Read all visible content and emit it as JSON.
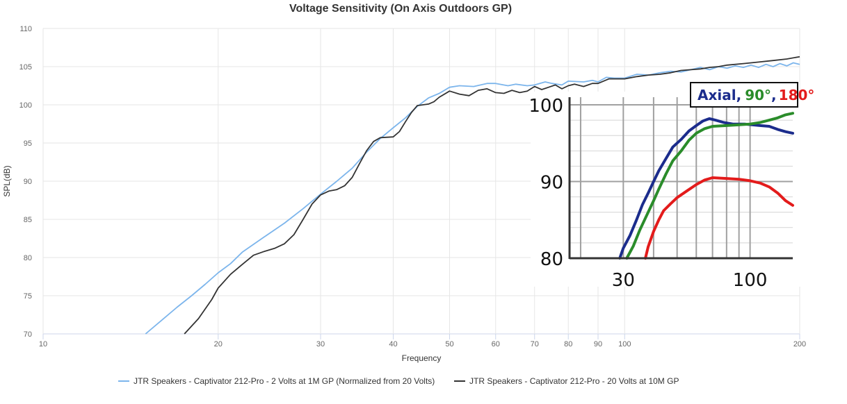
{
  "chart_data": [
    {
      "type": "line",
      "title": "Voltage Sensitivity (On Axis Outdoors GP)",
      "xlabel": "Frequency",
      "ylabel": "SPL(dB)",
      "xscale": "log",
      "xlim": [
        10,
        200
      ],
      "ylim": [
        70,
        110
      ],
      "xticks": [
        10,
        20,
        30,
        40,
        50,
        60,
        70,
        80,
        90,
        100,
        200
      ],
      "yticks": [
        70,
        75,
        80,
        85,
        90,
        95,
        100,
        105,
        110
      ],
      "grid": true,
      "legend_position": "bottom",
      "series": [
        {
          "name": "JTR Speakers - Captivator 212-Pro - 2 Volts at 1M GP (Normalized from 20 Volts)",
          "color": "#7cb5ec",
          "points": [
            [
              15,
              70
            ],
            [
              16,
              71.8
            ],
            [
              17,
              73.5
            ],
            [
              18,
              75
            ],
            [
              19,
              76.5
            ],
            [
              20,
              78
            ],
            [
              21,
              79.2
            ],
            [
              22,
              80.7
            ],
            [
              24,
              82.7
            ],
            [
              26,
              84.5
            ],
            [
              28,
              86.4
            ],
            [
              30,
              88.3
            ],
            [
              32,
              90
            ],
            [
              34,
              91.7
            ],
            [
              36,
              93.8
            ],
            [
              38,
              95.6
            ],
            [
              40,
              97
            ],
            [
              42,
              98.3
            ],
            [
              44,
              99.8
            ],
            [
              46,
              100.9
            ],
            [
              48,
              101.5
            ],
            [
              50,
              102.3
            ],
            [
              52,
              102.5
            ],
            [
              55,
              102.4
            ],
            [
              58,
              102.8
            ],
            [
              60,
              102.8
            ],
            [
              63,
              102.5
            ],
            [
              65,
              102.7
            ],
            [
              68,
              102.5
            ],
            [
              70,
              102.6
            ],
            [
              73,
              103
            ],
            [
              75,
              102.8
            ],
            [
              78,
              102.6
            ],
            [
              80,
              103.1
            ],
            [
              85,
              103
            ],
            [
              88,
              103.2
            ],
            [
              90,
              103
            ],
            [
              93,
              103.6
            ],
            [
              96,
              103.5
            ],
            [
              100,
              103.5
            ],
            [
              105,
              104
            ],
            [
              110,
              103.9
            ],
            [
              115,
              104.2
            ],
            [
              120,
              104.4
            ],
            [
              125,
              104.3
            ],
            [
              130,
              104.6
            ],
            [
              135,
              104.9
            ],
            [
              140,
              104.6
            ],
            [
              145,
              105
            ],
            [
              150,
              104.8
            ],
            [
              155,
              105.1
            ],
            [
              160,
              104.9
            ],
            [
              165,
              105.2
            ],
            [
              170,
              104.9
            ],
            [
              175,
              105.3
            ],
            [
              180,
              105
            ],
            [
              185,
              105.4
            ],
            [
              190,
              105.1
            ],
            [
              195,
              105.5
            ],
            [
              200,
              105.3
            ]
          ]
        },
        {
          "name": "JTR Speakers - Captivator 212-Pro - 20 Volts at 10M GP",
          "color": "#333333",
          "points": [
            [
              17.5,
              70
            ],
            [
              18.5,
              72
            ],
            [
              19.5,
              74.5
            ],
            [
              20,
              76
            ],
            [
              21,
              77.8
            ],
            [
              22,
              79.1
            ],
            [
              23,
              80.3
            ],
            [
              24,
              80.8
            ],
            [
              25,
              81.2
            ],
            [
              26,
              81.8
            ],
            [
              27,
              83
            ],
            [
              28,
              85
            ],
            [
              29,
              87
            ],
            [
              30,
              88.2
            ],
            [
              31,
              88.7
            ],
            [
              32,
              88.9
            ],
            [
              33,
              89.4
            ],
            [
              34,
              90.5
            ],
            [
              35,
              92.3
            ],
            [
              36,
              94
            ],
            [
              37,
              95.2
            ],
            [
              38,
              95.7
            ],
            [
              40,
              95.8
            ],
            [
              41,
              96.5
            ],
            [
              42,
              97.8
            ],
            [
              43,
              99
            ],
            [
              44,
              99.9
            ],
            [
              46,
              100.1
            ],
            [
              47,
              100.4
            ],
            [
              48,
              101
            ],
            [
              50,
              101.8
            ],
            [
              52,
              101.4
            ],
            [
              54,
              101.2
            ],
            [
              56,
              101.9
            ],
            [
              58,
              102.1
            ],
            [
              60,
              101.6
            ],
            [
              62,
              101.5
            ],
            [
              64,
              101.9
            ],
            [
              66,
              101.6
            ],
            [
              68,
              101.8
            ],
            [
              70,
              102.4
            ],
            [
              72,
              102
            ],
            [
              74,
              102.3
            ],
            [
              76,
              102.6
            ],
            [
              78,
              102.1
            ],
            [
              80,
              102.5
            ],
            [
              82,
              102.7
            ],
            [
              85,
              102.4
            ],
            [
              88,
              102.8
            ],
            [
              90,
              102.8
            ],
            [
              94,
              103.4
            ],
            [
              96,
              103.4
            ],
            [
              100,
              103.4
            ],
            [
              105,
              103.7
            ],
            [
              110,
              103.9
            ],
            [
              115,
              104
            ],
            [
              120,
              104.2
            ],
            [
              125,
              104.5
            ],
            [
              130,
              104.6
            ],
            [
              135,
              104.7
            ],
            [
              140,
              104.9
            ],
            [
              145,
              105
            ],
            [
              150,
              105.2
            ],
            [
              160,
              105.4
            ],
            [
              170,
              105.6
            ],
            [
              180,
              105.8
            ],
            [
              190,
              106
            ],
            [
              200,
              106.3
            ]
          ]
        }
      ]
    },
    {
      "type": "line",
      "description_placement": "inset",
      "xscale": "log",
      "xlim": [
        18,
        150
      ],
      "ylim": [
        80,
        101
      ],
      "xtick_labels": [
        {
          "value": 30,
          "label": "30"
        },
        {
          "value": 100,
          "label": "100"
        }
      ],
      "yticks": [
        80,
        90,
        100
      ],
      "grid": true,
      "legend": {
        "entries": [
          {
            "text": "Axial",
            "color": "#1b2c8c"
          },
          {
            "text": ",",
            "color": "#1b2c8c"
          },
          {
            "text": "90°",
            "color": "#2a8c2a"
          },
          {
            "text": ",",
            "color": "#1b2c8c"
          },
          {
            "text": "180°",
            "color": "#e31b1b"
          }
        ]
      },
      "series": [
        {
          "name": "Axial",
          "color": "#1b2c8c",
          "points": [
            [
              29,
              80
            ],
            [
              30,
              81.3
            ],
            [
              32,
              83
            ],
            [
              34,
              85
            ],
            [
              36,
              87
            ],
            [
              38,
              88.5
            ],
            [
              40,
              90
            ],
            [
              42,
              91.4
            ],
            [
              45,
              93
            ],
            [
              48,
              94.5
            ],
            [
              52,
              95.5
            ],
            [
              56,
              96.6
            ],
            [
              60,
              97.3
            ],
            [
              64,
              97.9
            ],
            [
              68,
              98.2
            ],
            [
              72,
              98
            ],
            [
              78,
              97.7
            ],
            [
              85,
              97.5
            ],
            [
              95,
              97.5
            ],
            [
              110,
              97.3
            ],
            [
              120,
              97.2
            ],
            [
              130,
              96.8
            ],
            [
              140,
              96.5
            ],
            [
              150,
              96.3
            ]
          ]
        },
        {
          "name": "90°",
          "color": "#2a8c2a",
          "points": [
            [
              31,
              80
            ],
            [
              33,
              81.6
            ],
            [
              35,
              83.6
            ],
            [
              38,
              86
            ],
            [
              40,
              87.5
            ],
            [
              42,
              89
            ],
            [
              45,
              91
            ],
            [
              48,
              92.7
            ],
            [
              52,
              94
            ],
            [
              56,
              95.4
            ],
            [
              60,
              96.3
            ],
            [
              65,
              96.9
            ],
            [
              70,
              97.2
            ],
            [
              80,
              97.3
            ],
            [
              90,
              97.4
            ],
            [
              100,
              97.5
            ],
            [
              110,
              97.7
            ],
            [
              120,
              98
            ],
            [
              130,
              98.3
            ],
            [
              140,
              98.7
            ],
            [
              150,
              98.9
            ]
          ]
        },
        {
          "name": "180°",
          "color": "#e31b1b",
          "points": [
            [
              37,
              80
            ],
            [
              38,
              81.5
            ],
            [
              40,
              83.5
            ],
            [
              42,
              85
            ],
            [
              44,
              86.2
            ],
            [
              47,
              87.1
            ],
            [
              50,
              87.9
            ],
            [
              55,
              88.8
            ],
            [
              60,
              89.6
            ],
            [
              65,
              90.2
            ],
            [
              70,
              90.5
            ],
            [
              80,
              90.4
            ],
            [
              90,
              90.3
            ],
            [
              100,
              90.1
            ],
            [
              110,
              89.8
            ],
            [
              120,
              89.3
            ],
            [
              130,
              88.5
            ],
            [
              140,
              87.5
            ],
            [
              150,
              86.9
            ]
          ]
        }
      ]
    }
  ]
}
